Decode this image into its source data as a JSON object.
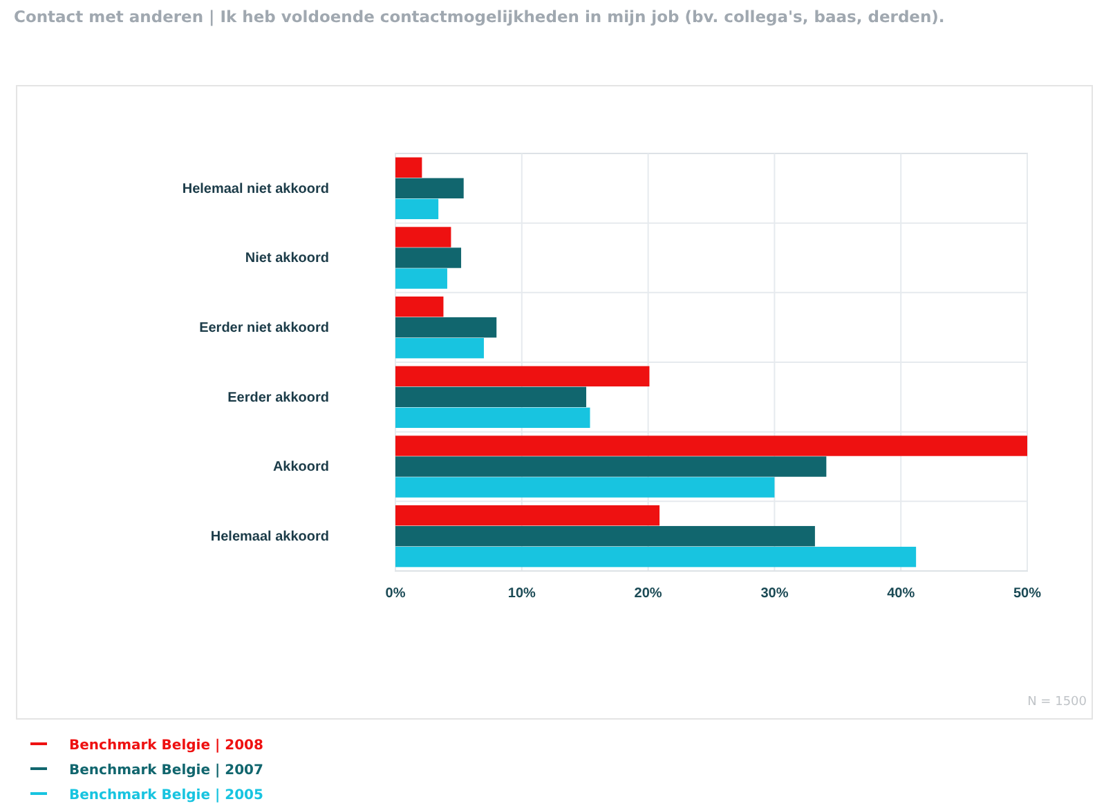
{
  "chart_data": {
    "type": "bar",
    "orientation": "horizontal",
    "title": "Contact met anderen | Ik heb voldoende contactmogelijkheden in mijn job (bv. collega's, baas, derden).",
    "categories": [
      "Helemaal niet akkoord",
      "Niet akkoord",
      "Eerder niet akkoord",
      "Eerder akkoord",
      "Akkoord",
      "Helemaal akkoord"
    ],
    "series": [
      {
        "name": "Benchmark Belgie | 2008",
        "color": "#ee1111",
        "values": [
          2.1,
          4.4,
          3.8,
          20.1,
          50.0,
          20.9
        ]
      },
      {
        "name": "Benchmark Belgie | 2007",
        "color": "#11666e",
        "values": [
          5.4,
          5.2,
          8.0,
          15.1,
          34.1,
          33.2
        ]
      },
      {
        "name": "Benchmark Belgie | 2005",
        "color": "#18c4e0",
        "values": [
          3.4,
          4.1,
          7.0,
          15.4,
          30.0,
          41.2
        ]
      }
    ],
    "xlim": [
      0,
      50
    ],
    "xticks": [
      {
        "value": 0,
        "label": "0%"
      },
      {
        "value": 10,
        "label": "10%"
      },
      {
        "value": 20,
        "label": "20%"
      },
      {
        "value": 30,
        "label": "30%"
      },
      {
        "value": 40,
        "label": "40%"
      },
      {
        "value": 50,
        "label": "50%"
      }
    ],
    "grid": true,
    "legend": "bottom left",
    "annotations": [
      "N = 1500"
    ]
  }
}
